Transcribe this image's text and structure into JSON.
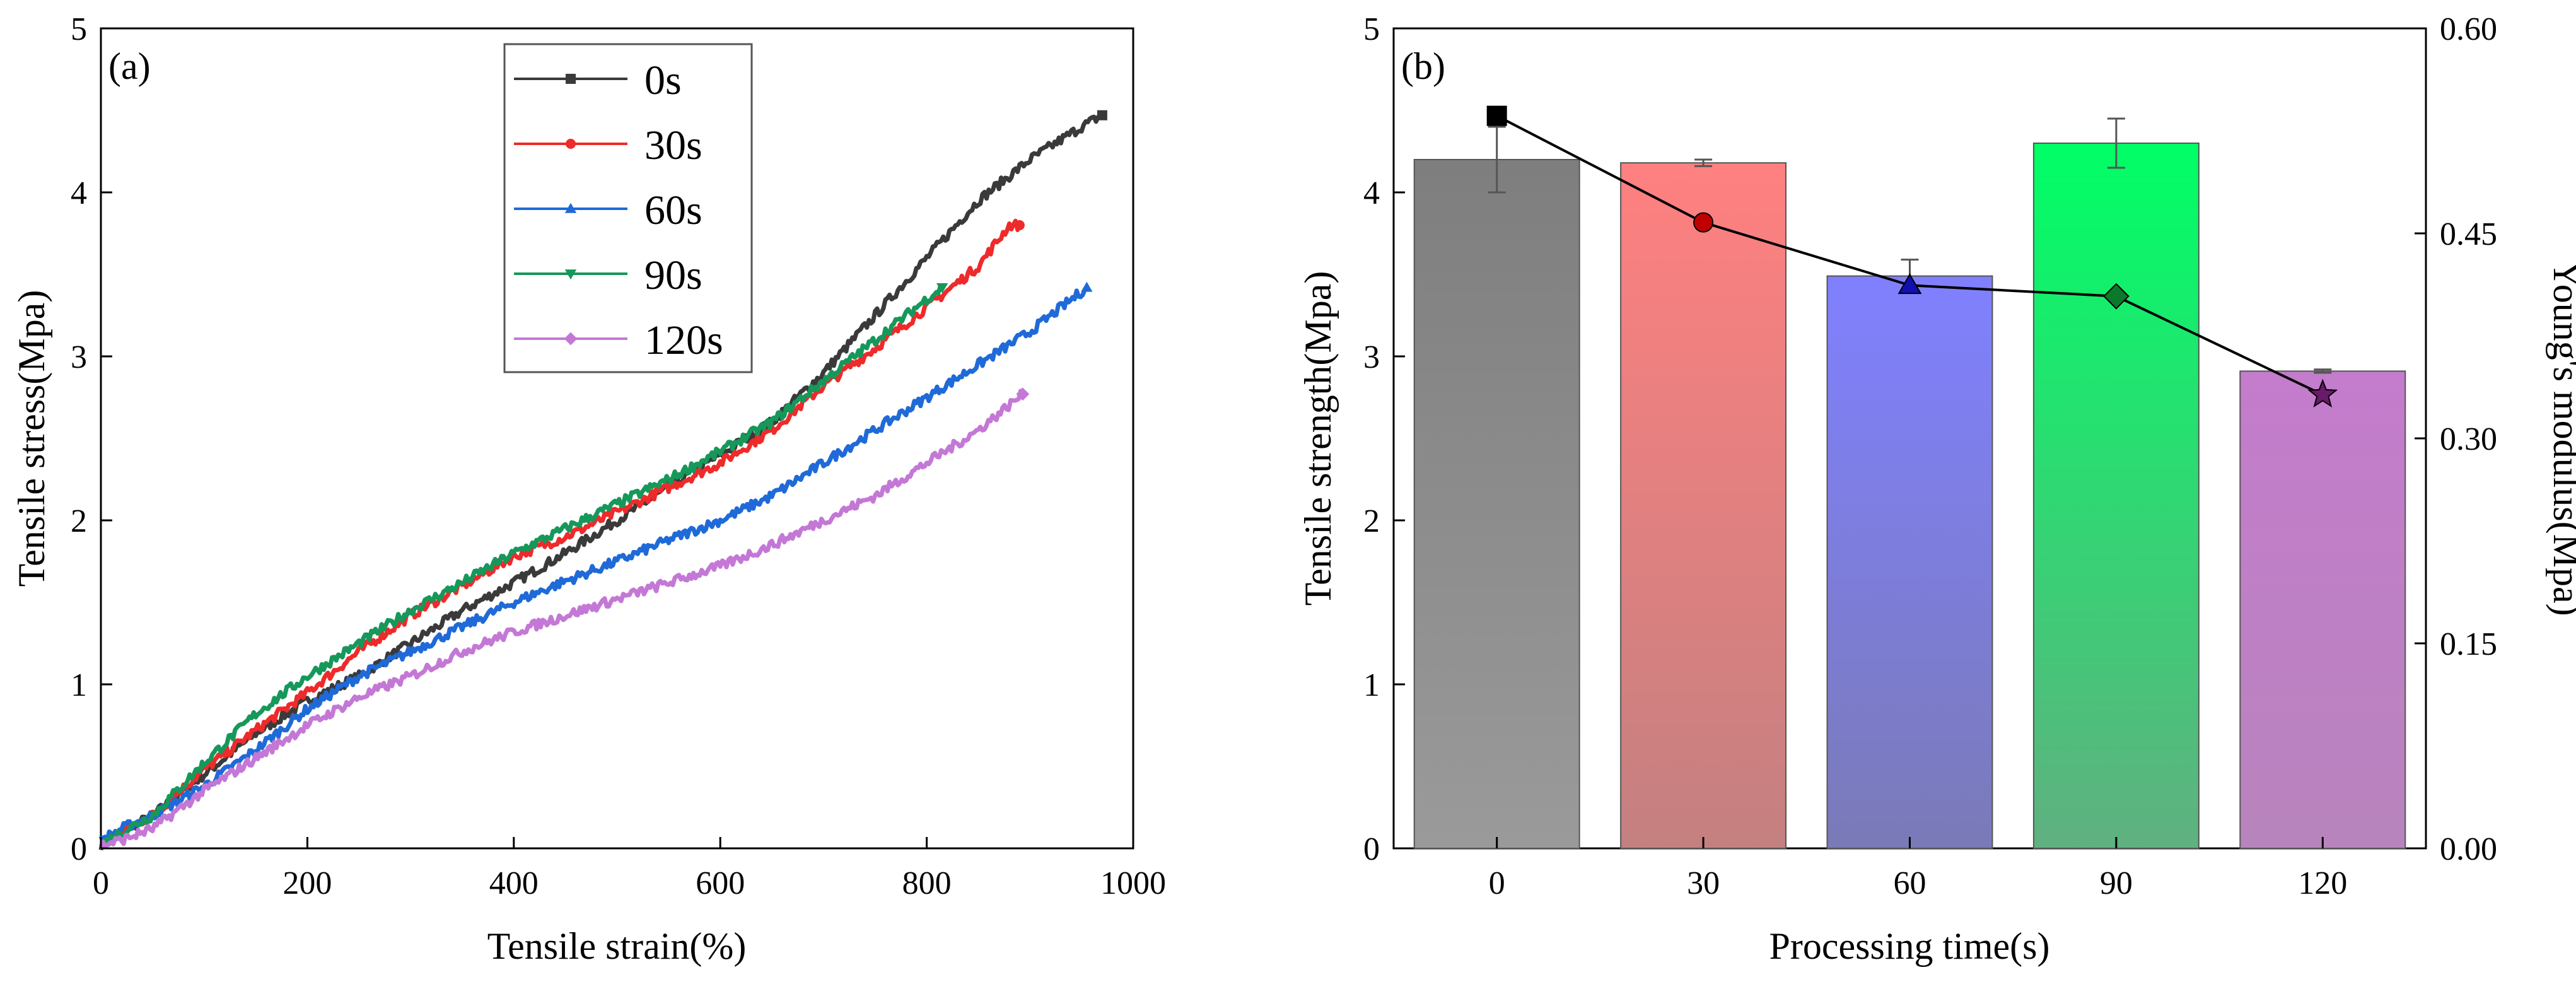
{
  "chart_data": [
    {
      "panel": "(a)",
      "type": "line",
      "xlabel": "Tensile strain(%)",
      "ylabel": "Tensile stress(Mpa)",
      "xlim": [
        0,
        1000
      ],
      "ylim": [
        0,
        5
      ],
      "x_ticks": [
        0,
        200,
        400,
        600,
        800,
        1000
      ],
      "y_ticks": [
        0,
        1,
        2,
        3,
        4,
        5
      ],
      "legend_position": "top-center",
      "series": [
        {
          "name": "0s",
          "color": "#3a3a3a",
          "marker": "square",
          "points": [
            [
              0,
              0.02
            ],
            [
              20,
              0.1
            ],
            [
              50,
              0.2
            ],
            [
              100,
              0.45
            ],
            [
              150,
              0.7
            ],
            [
              200,
              0.9
            ],
            [
              250,
              1.05
            ],
            [
              300,
              1.25
            ],
            [
              350,
              1.45
            ],
            [
              400,
              1.62
            ],
            [
              450,
              1.8
            ],
            [
              500,
              2.0
            ],
            [
              550,
              2.2
            ],
            [
              600,
              2.4
            ],
            [
              650,
              2.6
            ],
            [
              700,
              2.9
            ],
            [
              750,
              3.25
            ],
            [
              800,
              3.6
            ],
            [
              850,
              3.95
            ],
            [
              900,
              4.2
            ],
            [
              950,
              4.4
            ],
            [
              970,
              4.47
            ]
          ]
        },
        {
          "name": "30s",
          "color": "#ee2a2a",
          "marker": "circle",
          "points": [
            [
              0,
              0.02
            ],
            [
              20,
              0.1
            ],
            [
              50,
              0.2
            ],
            [
              100,
              0.48
            ],
            [
              150,
              0.72
            ],
            [
              200,
              0.95
            ],
            [
              250,
              1.2
            ],
            [
              300,
              1.42
            ],
            [
              350,
              1.6
            ],
            [
              400,
              1.78
            ],
            [
              450,
              1.9
            ],
            [
              500,
              2.05
            ],
            [
              550,
              2.2
            ],
            [
              600,
              2.35
            ],
            [
              650,
              2.55
            ],
            [
              700,
              2.82
            ],
            [
              750,
              3.05
            ],
            [
              800,
              3.3
            ],
            [
              850,
              3.55
            ],
            [
              880,
              3.8
            ],
            [
              890,
              3.8
            ]
          ]
        },
        {
          "name": "60s",
          "color": "#1f6ad8",
          "marker": "triangle-up",
          "points": [
            [
              0,
              0.05
            ],
            [
              20,
              0.12
            ],
            [
              50,
              0.2
            ],
            [
              100,
              0.38
            ],
            [
              150,
              0.6
            ],
            [
              200,
              0.85
            ],
            [
              250,
              1.05
            ],
            [
              300,
              1.2
            ],
            [
              350,
              1.35
            ],
            [
              400,
              1.5
            ],
            [
              450,
              1.63
            ],
            [
              500,
              1.75
            ],
            [
              550,
              1.88
            ],
            [
              600,
              2.0
            ],
            [
              650,
              2.15
            ],
            [
              700,
              2.35
            ],
            [
              750,
              2.55
            ],
            [
              800,
              2.75
            ],
            [
              850,
              2.95
            ],
            [
              900,
              3.15
            ],
            [
              955,
              3.42
            ]
          ]
        },
        {
          "name": "90s",
          "color": "#16985a",
          "marker": "triangle-down",
          "points": [
            [
              0,
              0.02
            ],
            [
              20,
              0.1
            ],
            [
              50,
              0.2
            ],
            [
              100,
              0.52
            ],
            [
              150,
              0.82
            ],
            [
              200,
              1.05
            ],
            [
              250,
              1.25
            ],
            [
              300,
              1.45
            ],
            [
              350,
              1.62
            ],
            [
              400,
              1.8
            ],
            [
              450,
              1.95
            ],
            [
              500,
              2.1
            ],
            [
              550,
              2.25
            ],
            [
              600,
              2.42
            ],
            [
              650,
              2.6
            ],
            [
              700,
              2.85
            ],
            [
              750,
              3.1
            ],
            [
              800,
              3.35
            ],
            [
              815,
              3.42
            ]
          ]
        },
        {
          "name": "120s",
          "color": "#c478d6",
          "marker": "diamond",
          "points": [
            [
              0,
              0.02
            ],
            [
              20,
              0.05
            ],
            [
              50,
              0.12
            ],
            [
              100,
              0.35
            ],
            [
              150,
              0.55
            ],
            [
              200,
              0.75
            ],
            [
              250,
              0.92
            ],
            [
              300,
              1.05
            ],
            [
              350,
              1.2
            ],
            [
              400,
              1.32
            ],
            [
              450,
              1.42
            ],
            [
              500,
              1.52
            ],
            [
              550,
              1.62
            ],
            [
              600,
              1.72
            ],
            [
              650,
              1.85
            ],
            [
              700,
              2.0
            ],
            [
              750,
              2.15
            ],
            [
              800,
              2.35
            ],
            [
              850,
              2.55
            ],
            [
              893,
              2.77
            ]
          ]
        }
      ]
    },
    {
      "panel": "(b)",
      "type": "bar",
      "xlabel": "Processing time(s)",
      "ylabel": "Tensile strength(Mpa)",
      "y2label": "Young's modulus(Mpa)",
      "categories": [
        "0",
        "30",
        "60",
        "90",
        "120"
      ],
      "ylim": [
        0,
        5
      ],
      "y_ticks": [
        0,
        1,
        2,
        3,
        4,
        5
      ],
      "y2lim": [
        0,
        0.6
      ],
      "y2_ticks": [
        "0.00",
        "0.15",
        "0.30",
        "0.45",
        "0.60"
      ],
      "series": [
        {
          "name": "Tensile strength",
          "axis": "left",
          "values": [
            4.2,
            4.18,
            3.49,
            4.3,
            2.91
          ],
          "errors": [
            0.2,
            0.02,
            0.1,
            0.15,
            0.01
          ],
          "colors_top": [
            "#7e7e7e",
            "#ff8080",
            "#8080ff",
            "#00ff66",
            "#c47ccc"
          ],
          "colors_bottom": [
            "#9a9a9a",
            "#c48080",
            "#7a7ab8",
            "#60b080",
            "#b884bd"
          ]
        },
        {
          "name": "Young's modulus",
          "axis": "right",
          "values": [
            0.536,
            0.458,
            0.412,
            0.404,
            0.332
          ],
          "markers": [
            "square",
            "circle",
            "triangle-up",
            "diamond",
            "star"
          ],
          "marker_colors": [
            "#000000",
            "#c00000",
            "#1010b0",
            "#0a7a2a",
            "#6a1a6a"
          ]
        }
      ]
    }
  ]
}
